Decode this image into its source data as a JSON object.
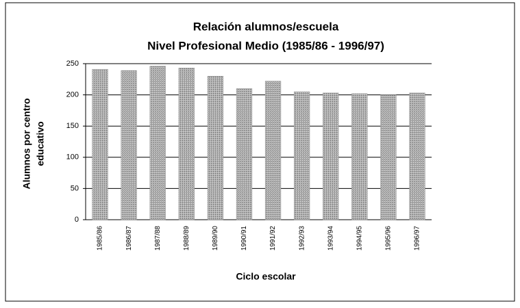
{
  "chart_data": {
    "type": "bar",
    "title": "Relación alumnos/escuela",
    "subtitle": "Nivel Profesional Medio (1985/86 - 1996/97)",
    "ylabel": [
      "Alumnos por centro",
      "educativo"
    ],
    "xlabel": "Ciclo escolar",
    "categories": [
      "1985/86",
      "1986/87",
      "1987/88",
      "1988/89",
      "1989/90",
      "1990/91",
      "1991/92",
      "1992/93",
      "1993/94",
      "1994/95",
      "1995/96",
      "1996/97"
    ],
    "values": [
      241,
      239,
      246,
      243,
      230,
      210,
      222,
      205,
      203,
      202,
      200,
      203
    ],
    "color": "#a8a8a8",
    "ylim": [
      0,
      250
    ],
    "yticks": [
      0,
      50,
      100,
      150,
      200,
      250
    ],
    "grid": true
  }
}
